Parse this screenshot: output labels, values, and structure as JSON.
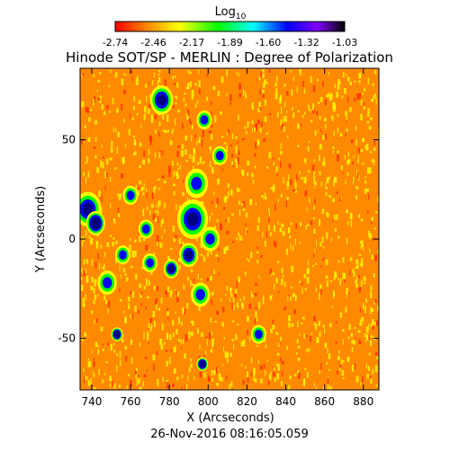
{
  "chart_data": {
    "type": "heatmap",
    "title": "Hinode SOT/SP - MERLIN : Degree of Polarization",
    "subtitle": "26-Nov-2016 08:16:05.059",
    "xlabel": "X (Arcseconds)",
    "ylabel": "Y (Arcseconds)",
    "xlim": [
      734,
      888
    ],
    "ylim": [
      -76,
      86
    ],
    "x_ticks": [
      740,
      760,
      780,
      800,
      820,
      840,
      860,
      880
    ],
    "y_ticks": [
      -50,
      0,
      50
    ],
    "colorbar": {
      "title_main": "Log",
      "title_sub": "10",
      "tick_labels": [
        "-2.74",
        "-2.46",
        "-2.17",
        "-1.89",
        "-1.60",
        "-1.32",
        "-1.03"
      ],
      "colors": [
        "#ff0000",
        "#ff7f00",
        "#ffff00",
        "#00ff00",
        "#00ffff",
        "#0000ff",
        "#8000ff",
        "#000000"
      ]
    },
    "colors": {
      "background": "#ff8a00",
      "granulation": "#ffff00",
      "weak_field": "#00ff00",
      "field": "#0000ff",
      "strong_field": "#000080"
    },
    "magnetic_regions": [
      {
        "x": 738,
        "y": 15,
        "r": 6,
        "level": 3
      },
      {
        "x": 742,
        "y": 8,
        "r": 4,
        "level": 4
      },
      {
        "x": 748,
        "y": -22,
        "r": 4,
        "level": 2
      },
      {
        "x": 753,
        "y": -48,
        "r": 2,
        "level": 4
      },
      {
        "x": 756,
        "y": -8,
        "r": 3,
        "level": 2
      },
      {
        "x": 760,
        "y": 22,
        "r": 3,
        "level": 2
      },
      {
        "x": 768,
        "y": 5,
        "r": 3,
        "level": 2
      },
      {
        "x": 770,
        "y": -12,
        "r": 3,
        "level": 2
      },
      {
        "x": 776,
        "y": 70,
        "r": 5,
        "level": 3
      },
      {
        "x": 781,
        "y": -15,
        "r": 3,
        "level": 3
      },
      {
        "x": 790,
        "y": -8,
        "r": 4,
        "level": 3
      },
      {
        "x": 792,
        "y": 10,
        "r": 7,
        "level": 3
      },
      {
        "x": 794,
        "y": 28,
        "r": 5,
        "level": 2
      },
      {
        "x": 796,
        "y": -28,
        "r": 4,
        "level": 2
      },
      {
        "x": 797,
        "y": -63,
        "r": 2,
        "level": 4
      },
      {
        "x": 798,
        "y": 60,
        "r": 3,
        "level": 2
      },
      {
        "x": 801,
        "y": 0,
        "r": 4,
        "level": 2
      },
      {
        "x": 806,
        "y": 42,
        "r": 3,
        "level": 2
      },
      {
        "x": 826,
        "y": -48,
        "r": 3,
        "level": 2
      }
    ]
  }
}
